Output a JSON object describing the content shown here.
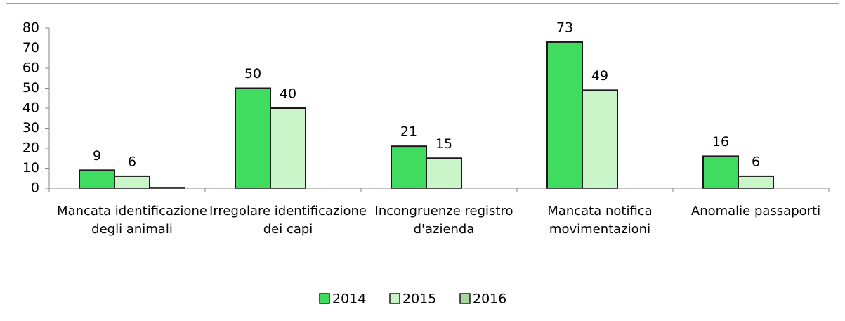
{
  "chart_data": {
    "type": "bar",
    "categories": [
      "Mancata identificazione degli animali",
      "Irregolare identificazione dei capi",
      "Incongruenze registro d'azienda",
      "Mancata notifica movimentazioni",
      "Anomalie passaporti"
    ],
    "series": [
      {
        "name": "2014",
        "color": "#3fdc5f",
        "values": [
          9,
          50,
          21,
          73,
          16
        ],
        "data_labels": true
      },
      {
        "name": "2015",
        "color": "#c9f5c9",
        "values": [
          6,
          40,
          15,
          49,
          6
        ],
        "data_labels": true
      },
      {
        "name": "2016",
        "color": "#a9d6a0",
        "values": [
          0.3,
          null,
          null,
          null,
          null
        ],
        "data_labels": false
      }
    ],
    "ylim": [
      0,
      80
    ],
    "yticks": [
      0,
      10,
      20,
      30,
      40,
      50,
      60,
      70,
      80
    ],
    "grid": false,
    "legend": "bottom"
  }
}
